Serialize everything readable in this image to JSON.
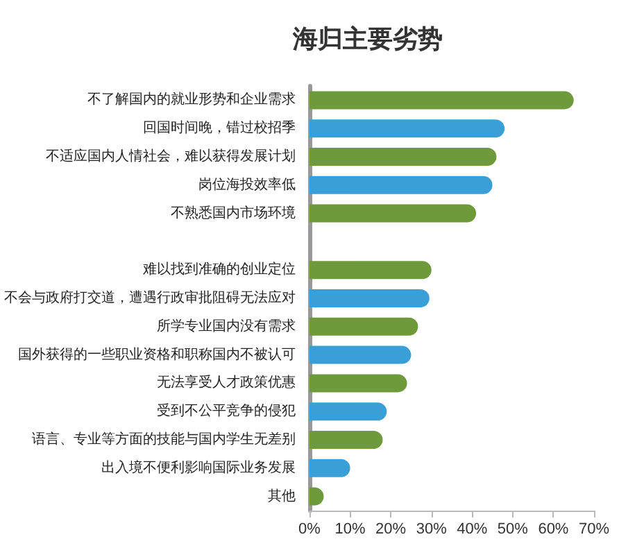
{
  "chart_data": {
    "type": "bar",
    "title": "海归主要劣势",
    "orientation": "horizontal",
    "categories": [
      "不了解国内的就业形势和企业需求",
      "回国时间晚，错过校招季",
      "不适应国内人情社会，难以获得发展计划",
      "岗位海投效率低",
      "不熟悉国内市场环境",
      null,
      "难以找到准确的创业定位",
      "不会与政府打交道，遭遇行政审批阻碍无法应对",
      "所学专业国内没有需求",
      "国外获得的一些职业资格和职称国内不被认可",
      "无法享受人才政策优惠",
      "受到不公平竞争的侵犯",
      "语言、专业等方面的技能与国内学生无差别",
      "出入境不便利影响国际业务发展",
      "其他"
    ],
    "values": [
      65,
      48,
      46,
      45,
      41,
      null,
      30,
      29.5,
      26.7,
      25,
      24,
      19,
      18,
      10,
      3.5
    ],
    "colors": [
      "#6f9a3c",
      "#3a9fd6",
      "#6f9a3c",
      "#3a9fd6",
      "#6f9a3c",
      "#3a9fd6",
      "#6f9a3c",
      "#3a9fd6",
      "#6f9a3c",
      "#3a9fd6",
      "#6f9a3c",
      "#3a9fd6",
      "#6f9a3c",
      "#3a9fd6",
      "#6f9a3c"
    ],
    "xlim": [
      0,
      70
    ],
    "xticks": [
      {
        "value": 0,
        "label": "0%"
      },
      {
        "value": 10,
        "label": "10%"
      },
      {
        "value": 20,
        "label": "20%"
      },
      {
        "value": 30,
        "label": "30%"
      },
      {
        "value": 40,
        "label": "40%"
      },
      {
        "value": 50,
        "label": "50%"
      },
      {
        "value": 60,
        "label": "60%"
      },
      {
        "value": 70,
        "label": "70%"
      }
    ],
    "grid": false
  }
}
